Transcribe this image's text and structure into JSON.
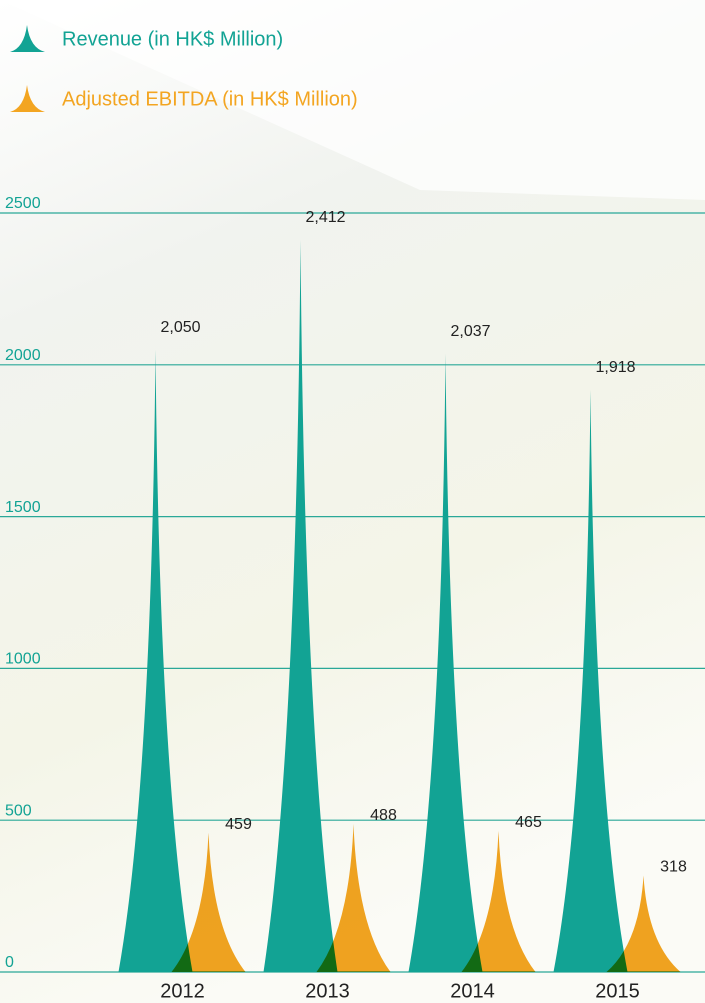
{
  "chart_data": {
    "type": "spike",
    "categories": [
      "2012",
      "2013",
      "2014",
      "2015"
    ],
    "series": [
      {
        "name": "Revenue (in HK$ Million)",
        "color": "#12a394",
        "values": [
          2050,
          2412,
          2037,
          1918
        ],
        "value_labels": [
          "2,050",
          "2,412",
          "2,037",
          "1,918"
        ]
      },
      {
        "name": "Adjusted EBITDA (in HK$ Million)",
        "color": "#f3a521",
        "values": [
          459,
          488,
          465,
          318
        ]
      }
    ],
    "ylim": [
      0,
      2500
    ],
    "yticks": [
      0,
      500,
      1000,
      1500,
      2000,
      2500
    ],
    "grid": true
  }
}
